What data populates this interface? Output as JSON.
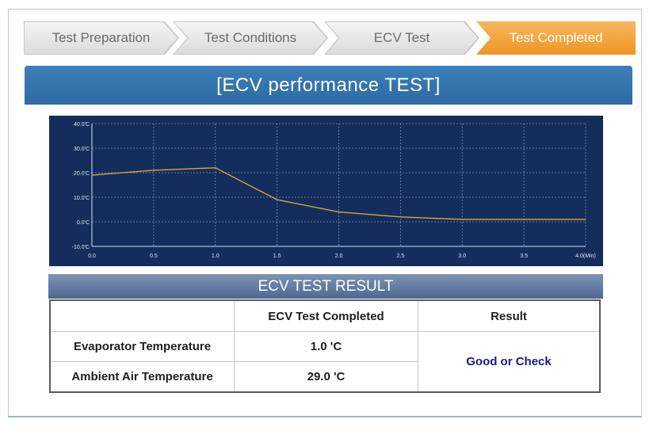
{
  "steps": [
    {
      "label": "Test Preparation",
      "active": false
    },
    {
      "label": "Test Conditions",
      "active": false
    },
    {
      "label": "ECV Test",
      "active": false
    },
    {
      "label": "Test Completed",
      "active": true
    }
  ],
  "title": "[ECV performance TEST]",
  "chart_data": {
    "type": "line",
    "x": [
      0.0,
      0.5,
      1.0,
      1.5,
      2.0,
      2.5,
      3.0,
      3.5,
      4.0
    ],
    "series": [
      {
        "values": [
          19,
          21,
          22,
          9,
          4,
          2,
          1,
          1,
          1
        ]
      }
    ],
    "xticks": [
      "0.0",
      "0.5",
      "1.0",
      "1.5",
      "2.0",
      "2.5",
      "3.0",
      "3.5",
      "4.0(Min)"
    ],
    "yticks": [
      "40.0'C",
      "30.0'C",
      "20.0'C",
      "10.0'C",
      "0.0'C",
      "-10.0'C"
    ],
    "xlim": [
      0,
      4
    ],
    "ylim": [
      -10,
      40
    ],
    "grid": true,
    "colors": {
      "background": "#142d5c",
      "line": "#e0a33a",
      "grid": "#7f8fb5"
    }
  },
  "result": {
    "heading": "ECV TEST RESULT",
    "columns": [
      "",
      "ECV Test Completed",
      "Result"
    ],
    "rows": [
      {
        "label": "Evaporator Temperature",
        "value": "1.0 'C"
      },
      {
        "label": "Ambient Air Temperature",
        "value": "29.0 'C"
      }
    ],
    "verdict": "Good or Check"
  }
}
